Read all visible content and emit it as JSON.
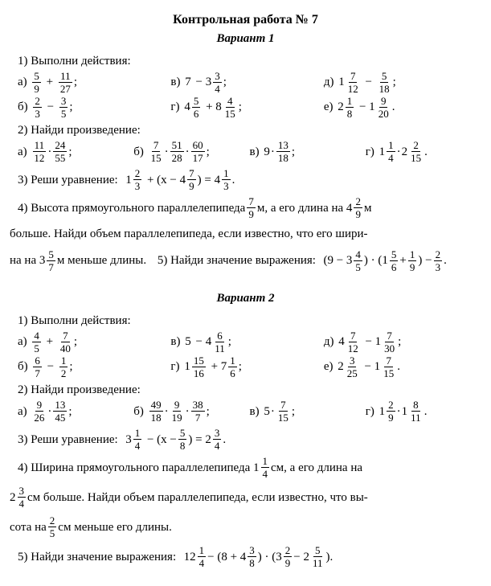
{
  "doc_title": "Контрольная работа № 7",
  "variants": [
    {
      "title": "Вариант 1",
      "t1": {
        "head": "1) Выполни действия:",
        "a_lbl": "а)",
        "a_1n": "5",
        "a_1d": "9",
        "a_op": "+",
        "a_2n": "11",
        "a_2d": "27",
        "b_lbl": "б)",
        "b_1n": "2",
        "b_1d": "3",
        "b_op": "−",
        "b_2n": "3",
        "b_2d": "5",
        "v_lbl": "в)",
        "v_w": "7",
        "v_op": "− 3",
        "v_n": "3",
        "v_d": "4",
        "g_lbl": "г)",
        "g_w1": "4",
        "g_1n": "5",
        "g_1d": "6",
        "g_op": "+ 8",
        "g_2n": "4",
        "g_2d": "15",
        "d_lbl": "д)",
        "d_w": "1",
        "d_1n": "7",
        "d_1d": "12",
        "d_op": "−",
        "d_2n": "5",
        "d_2d": "18",
        "e_lbl": "е)",
        "e_w1": "2",
        "e_1n": "1",
        "e_1d": "8",
        "e_op": "− 1",
        "e_2n": "9",
        "e_2d": "20"
      },
      "t2": {
        "head": "2) Найди произведение:",
        "a_lbl": "а)",
        "a_1n": "11",
        "a_1d": "12",
        "a_2n": "24",
        "a_2d": "55",
        "b_lbl": "б)",
        "b_1n": "7",
        "b_1d": "15",
        "b_2n": "51",
        "b_2d": "28",
        "b_3n": "60",
        "b_3d": "17",
        "v_lbl": "в)",
        "v_w": "9",
        "v_n": "13",
        "v_d": "18",
        "g_lbl": "г)",
        "g_w1": "1",
        "g_1n": "1",
        "g_1d": "4",
        "g_w2": "2",
        "g_2n": "2",
        "g_2d": "15"
      },
      "t3": {
        "head": "3) Реши уравнение:",
        "lw": "1",
        "l_n": "2",
        "l_d": "3",
        "mid": "+ (x − 4",
        "m_n": "7",
        "m_d": "9",
        "rhs": ") = 4",
        "r_n": "1",
        "r_d": "3"
      },
      "t4": {
        "p1a": "4) Высота прямоугольного параллелепипеда ",
        "f1n": "7",
        "f1d": "9",
        "p1b": " м, а его длина на 4",
        "f2n": "2",
        "f2d": "9",
        "p1c": " м",
        "p2a": "больше. Найди объем параллелепипеда, если известно, что его шири-",
        "p3a": "на на 3",
        "f3n": "5",
        "f3d": "7",
        "p3b": " м меньше длины."
      },
      "t5": {
        "head": "5) Найди значение выражения:",
        "a": "(9 − 3",
        "f1n": "4",
        "f1d": "5",
        "b": ") · (1",
        "f2n": "5",
        "f2d": "6",
        "c": " + ",
        "f3n": "1",
        "f3d": "9",
        "d": ") − ",
        "f4n": "2",
        "f4d": "3",
        "e": "."
      }
    },
    {
      "title": "Вариант 2",
      "t1": {
        "head": "1) Выполни действия:",
        "a_lbl": "а)",
        "a_1n": "4",
        "a_1d": "5",
        "a_op": "+",
        "a_2n": "7",
        "a_2d": "40",
        "b_lbl": "б)",
        "b_1n": "6",
        "b_1d": "7",
        "b_op": "−",
        "b_2n": "1",
        "b_2d": "2",
        "v_lbl": "в)",
        "v_w": "5",
        "v_op": "− 4",
        "v_n": "6",
        "v_d": "11",
        "g_lbl": "г)",
        "g_w1": "1",
        "g_1n": "15",
        "g_1d": "16",
        "g_op": "+ 7",
        "g_2n": "1",
        "g_2d": "6",
        "d_lbl": "д)",
        "d_w": "4",
        "d_1n": "7",
        "d_1d": "12",
        "d_op": "− 1",
        "d_2n": "7",
        "d_2d": "30",
        "e_lbl": "е)",
        "e_w1": "2",
        "e_1n": "3",
        "e_1d": "25",
        "e_op": "− 1",
        "e_2n": "7",
        "e_2d": "15"
      },
      "t2": {
        "head": "2) Найди произведение:",
        "a_lbl": "а)",
        "a_1n": "9",
        "a_1d": "26",
        "a_2n": "13",
        "a_2d": "45",
        "b_lbl": "б)",
        "b_1n": "49",
        "b_1d": "18",
        "b_2n": "9",
        "b_2d": "19",
        "b_3n": "38",
        "b_3d": "7",
        "v_lbl": "в)",
        "v_w": "5",
        "v_n": "7",
        "v_d": "15",
        "g_lbl": "г)",
        "g_w1": "1",
        "g_1n": "2",
        "g_1d": "9",
        "g_w2": "1",
        "g_2n": "8",
        "g_2d": "11"
      },
      "t3": {
        "head": "3) Реши уравнение:",
        "lw": "3",
        "l_n": "1",
        "l_d": "4",
        "mid": "− (x − ",
        "m_n": "5",
        "m_d": "8",
        "rhs": ") = 2",
        "r_n": "3",
        "r_d": "4"
      },
      "t4": {
        "p1a": "4) Ширина прямоугольного параллелепипеда 1",
        "f1n": "1",
        "f1d": "4",
        "p1b": " см, а его длина на",
        "p2w": "2",
        "f2n": "3",
        "f2d": "4",
        "p2a": " см больше. Найди объем параллелепипеда, если известно, что вы-",
        "p3a": "сота на ",
        "f3n": "2",
        "f3d": "5",
        "p3b": " см меньше его длины."
      },
      "t5": {
        "head": "5) Найди значение выражения:",
        "a": "12",
        "f1n": "1",
        "f1d": "4",
        "b": " − (8 + 4",
        "f2n": "3",
        "f2d": "8",
        "c": ") · (3",
        "f3n": "2",
        "f3d": "9",
        "d": " − 2",
        "f4n": "5",
        "f4d": "11",
        "e": ")."
      }
    }
  ]
}
